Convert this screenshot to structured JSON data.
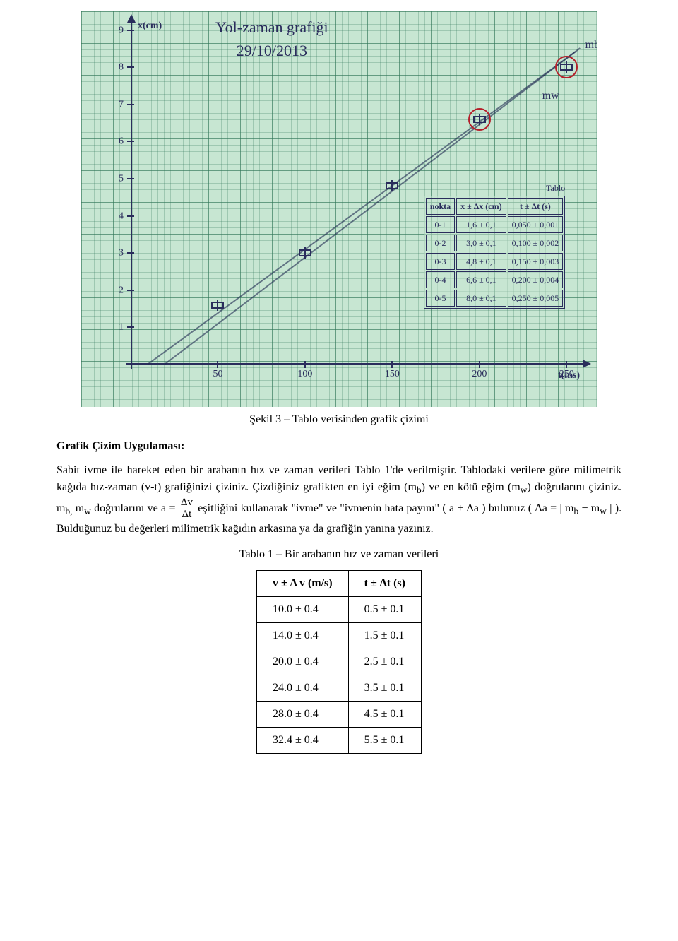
{
  "figure": {
    "caption": "Şekil 3 – Tablo verisinden grafik çizimi",
    "title_line1": "Yol-zaman grafiği",
    "title_line2": "29/10/2013",
    "axis_x_label": "t(ms)",
    "axis_y_label": "x(cm)",
    "background_color": "#c7e6d2",
    "ink_color": "#2a2d5c",
    "circle_color": "#b51f2a",
    "y_ticks": [
      "1",
      "2",
      "3",
      "4",
      "5",
      "6",
      "7",
      "8",
      "9"
    ],
    "x_ticks": [
      "50",
      "100",
      "150",
      "200",
      "250"
    ],
    "points": [
      {
        "t": 50,
        "x": 1.6
      },
      {
        "t": 100,
        "x": 3.0
      },
      {
        "t": 150,
        "x": 4.8
      },
      {
        "t": 200,
        "x": 6.6
      },
      {
        "t": 250,
        "x": 8.0
      }
    ],
    "circled_points_t": [
      200,
      250
    ],
    "ann_mb": "mb",
    "ann_mw": "mw",
    "emb_table_title": "Tablo",
    "emb_table_headers": [
      "nokta",
      "x ± Δx (cm)",
      "t ± Δt (s)"
    ],
    "emb_table_rows": [
      [
        "0-1",
        "1,6 ± 0,1",
        "0,050 ± 0,001"
      ],
      [
        "0-2",
        "3,0 ± 0,1",
        "0,100 ± 0,002"
      ],
      [
        "0-3",
        "4,8 ± 0,1",
        "0,150 ± 0,003"
      ],
      [
        "0-4",
        "6,6 ± 0,1",
        "0,200 ± 0,004"
      ],
      [
        "0-5",
        "8,0 ± 0,1",
        "0,250 ± 0,005"
      ]
    ],
    "fit_lines": [
      {
        "t1": 10,
        "x1": 0.0,
        "t2": 255,
        "x2": 8.4
      },
      {
        "t1": 20,
        "x1": 0.0,
        "t2": 258,
        "x2": 8.5
      }
    ],
    "scale": {
      "t_min": 0,
      "t_max": 260,
      "x_min": 0,
      "x_max": 9.2
    }
  },
  "section_heading": "Grafik Çizim Uygulaması:",
  "body_text": {
    "p1": "Sabit ivme ile hareket eden bir arabanın hız ve zaman verileri Tablo 1'de verilmiştir. Tablodaki verilere göre milimetrik kağıda hız-zaman (v-t) grafiğinizi çiziniz. Çizdiğiniz grafikten en iyi eğim (m",
    "p1_sub1": "b",
    "p1_mid": ") ve en kötü eğim (m",
    "p1_sub2": "w",
    "p1_tail": ") doğrularını çiziniz. m",
    "p1_sub3": "b,",
    "p1_tail2": " m",
    "p1_sub4": "w",
    "p1_tail3": " doğrularını ve",
    "formula_lhs": "a =",
    "formula_num": "Δv",
    "formula_den": "Δt",
    "p2_after_formula": " eşitliğini kullanarak \"ivme\" ve \"ivmenin hata payını\" ( a ± Δa ) bulunuz (",
    "formula2": "Δa = | m",
    "formula2_sub1": "b",
    "formula2_mid": " − m",
    "formula2_sub2": "w",
    "formula2_end": " |",
    "p2_tail": "). Bulduğunuz bu değerleri milimetrik kağıdın arkasına ya da grafiğin yanına yazınız."
  },
  "table1": {
    "caption": "Tablo 1 – Bir arabanın hız ve zaman verileri",
    "headers": [
      "v ± Δ v (m/s)",
      "t ± Δt (s)"
    ],
    "rows": [
      [
        "10.0 ± 0.4",
        "0.5 ± 0.1"
      ],
      [
        "14.0 ± 0.4",
        "1.5 ± 0.1"
      ],
      [
        "20.0 ± 0.4",
        "2.5 ± 0.1"
      ],
      [
        "24.0 ± 0.4",
        "3.5 ± 0.1"
      ],
      [
        "28.0 ± 0.4",
        "4.5 ± 0.1"
      ],
      [
        "32.4 ± 0.4",
        "5.5 ± 0.1"
      ]
    ]
  }
}
